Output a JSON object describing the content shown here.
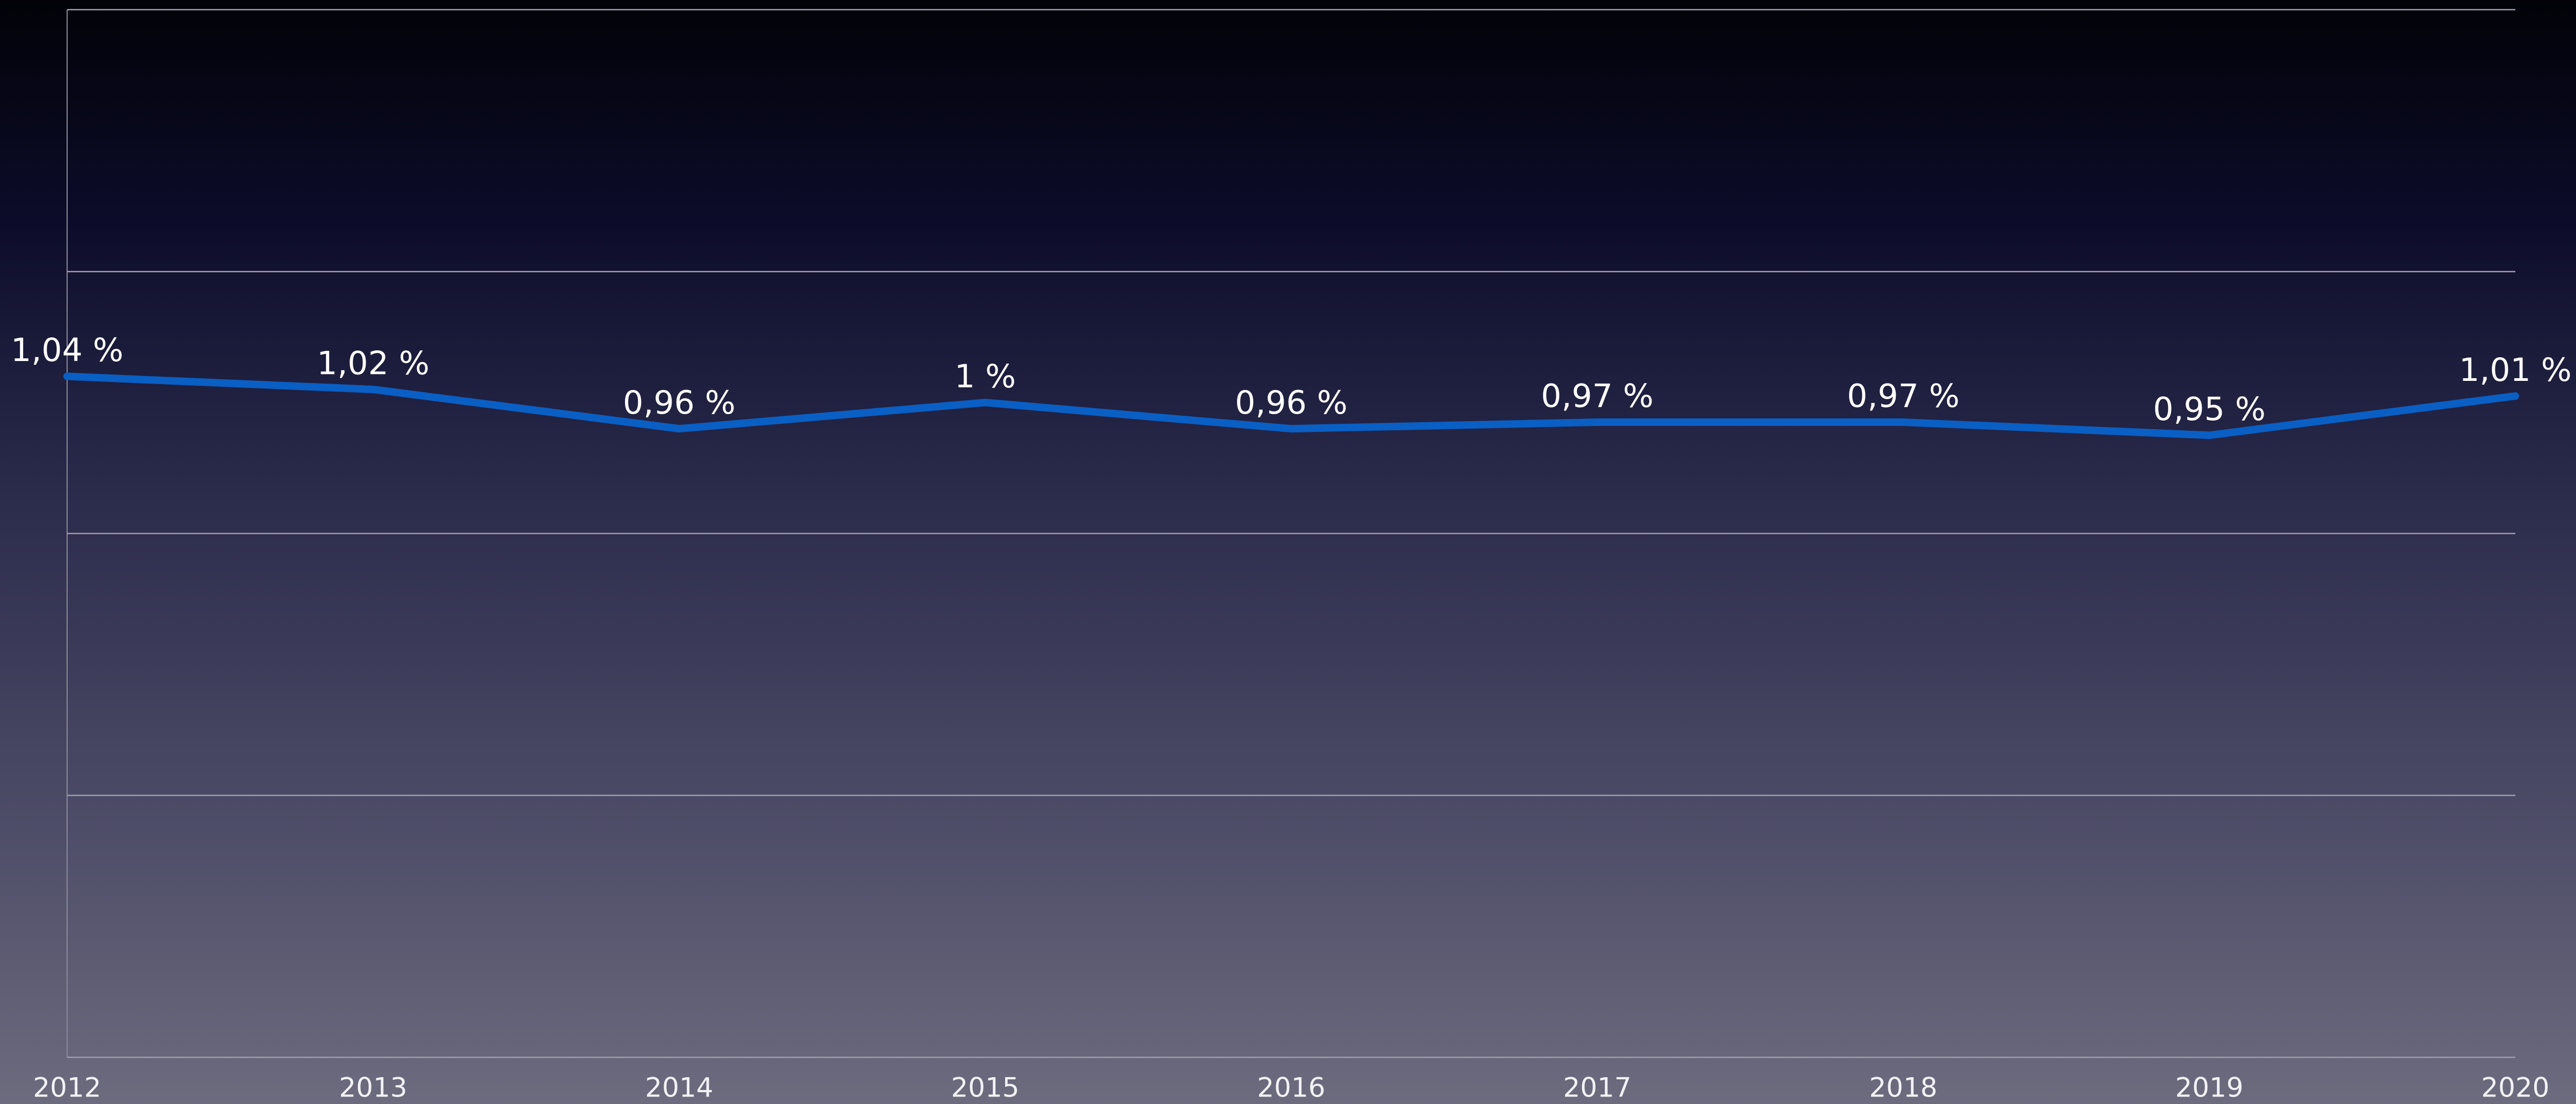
{
  "chart_data": {
    "type": "line",
    "categories": [
      "2012",
      "2013",
      "2014",
      "2015",
      "2016",
      "2017",
      "2018",
      "2019",
      "2020"
    ],
    "series": [
      {
        "color": "#0a5fc4",
        "values": [
          1.04,
          1.02,
          0.96,
          1,
          0.96,
          0.97,
          0.97,
          0.95,
          1.01
        ],
        "value_labels": [
          "1,04 %",
          "1,02 %",
          "0,96 %",
          "1 %",
          "0,96 %",
          "0,97 %",
          "0,97 %",
          "0,95 %",
          "1,01 %"
        ]
      }
    ],
    "ylim": [
      0,
      1.6
    ],
    "yticks": [
      0,
      0.4,
      0.8,
      1.2,
      1.6
    ],
    "grid": true
  }
}
